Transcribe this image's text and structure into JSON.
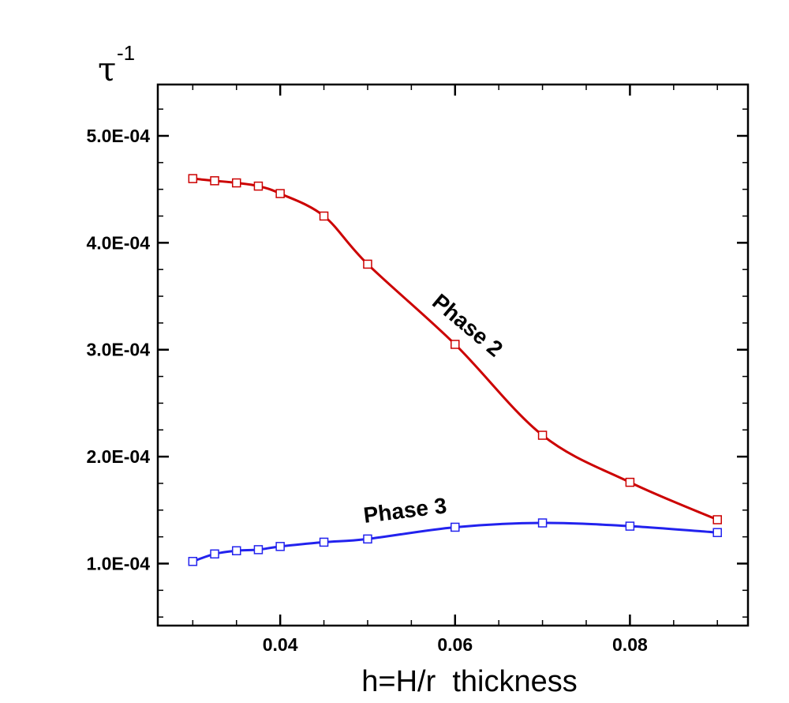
{
  "chart_data": {
    "type": "line",
    "xlabel": "h=H/r  thickness",
    "ylabel": {
      "symbol": "τ",
      "superscript": "-1"
    },
    "xlim": [
      0.026,
      0.0935
    ],
    "ylim": [
      4.2e-05,
      0.000548
    ],
    "x_ticks": [
      0.04,
      0.06,
      0.08
    ],
    "x_tick_labels": [
      "0.04",
      "0.06",
      "0.08"
    ],
    "y_ticks": [
      0.0001,
      0.0002,
      0.0003,
      0.0004,
      0.0005
    ],
    "y_tick_labels": [
      "1.0E-04",
      "2.0E-04",
      "3.0E-04",
      "4.0E-04",
      "5.0E-04"
    ],
    "grid": false,
    "series": [
      {
        "name": "Phase 2",
        "color": "#cc0000",
        "marker": "square-open",
        "x": [
          0.03,
          0.0325,
          0.035,
          0.0375,
          0.04,
          0.045,
          0.05,
          0.06,
          0.07,
          0.08,
          0.09
        ],
        "y": [
          0.00046,
          0.000458,
          0.000456,
          0.000453,
          0.000446,
          0.000425,
          0.00038,
          0.000305,
          0.00022,
          0.000176,
          0.000141
        ]
      },
      {
        "name": "Phase 3",
        "color": "#2222ee",
        "marker": "square-open",
        "x": [
          0.03,
          0.0325,
          0.035,
          0.0375,
          0.04,
          0.045,
          0.05,
          0.06,
          0.07,
          0.08,
          0.09
        ],
        "y": [
          0.000102,
          0.000109,
          0.000112,
          0.000113,
          0.000116,
          0.00012,
          0.000123,
          0.000134,
          0.000138,
          0.000135,
          0.000129
        ]
      }
    ],
    "annotations": [
      {
        "text": "Phase 2",
        "series": 0
      },
      {
        "text": "Phase 3",
        "series": 1
      }
    ]
  }
}
